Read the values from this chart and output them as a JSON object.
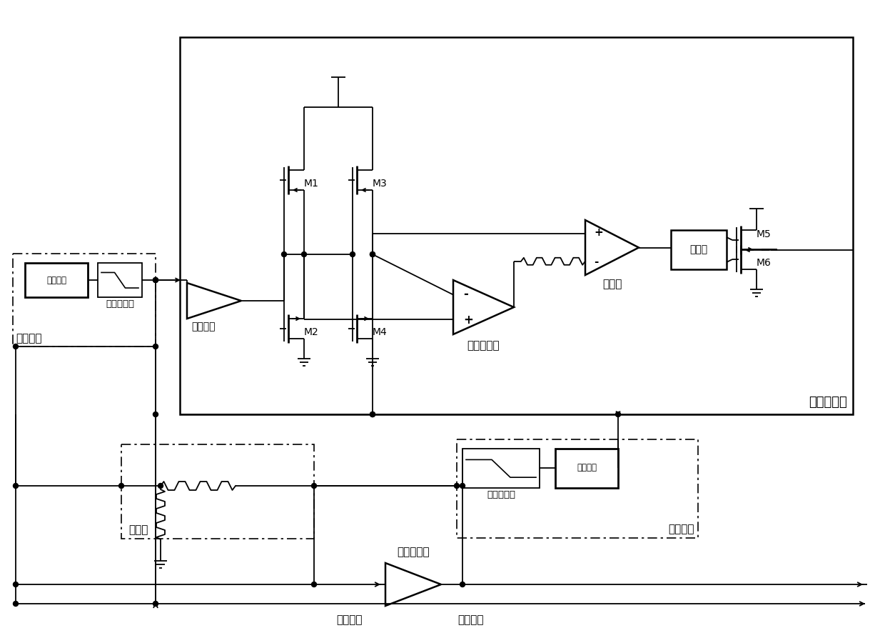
{
  "bg_color": "#ffffff",
  "labels": {
    "envelope_amp": "包络放大器",
    "envelope_detect_left": "包络检波",
    "envelope_detect_right": "包络检波",
    "low_pass_left": "低通滤波器",
    "low_pass_right": "低通滤波器",
    "full_wave_left": "全波整流",
    "full_wave_right": "全波整流",
    "transconductance": "跨导单元",
    "comparator": "比较器",
    "op_amp": "运算放大器",
    "driver": "驱动器",
    "attenuator": "衰减器",
    "power_amp": "功率放大器",
    "rf_in": "射频输入",
    "rf_out": "射频输出",
    "M1": "M1",
    "M2": "M2",
    "M3": "M3",
    "M4": "M4",
    "M5": "M5",
    "M6": "M6"
  }
}
